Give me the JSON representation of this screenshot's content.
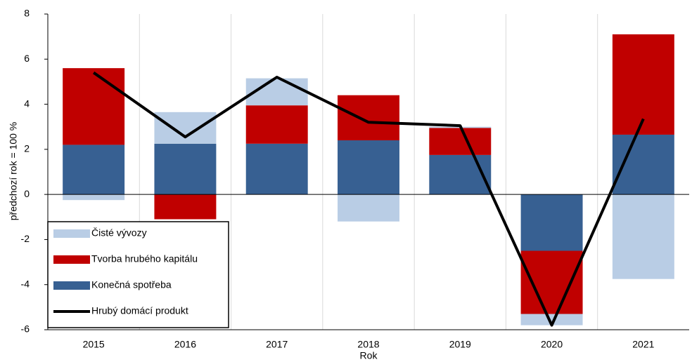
{
  "chart_data": {
    "type": "bar",
    "ylabel": "předchozí rok = 100 %",
    "xlabel": "Rok",
    "categories": [
      "2015",
      "2016",
      "2017",
      "2018",
      "2019",
      "2020",
      "2021"
    ],
    "series": [
      {
        "name": "Čisté vývozy",
        "color": "#b9cde5",
        "type": "bar",
        "values": [
          -0.25,
          1.4,
          1.2,
          -1.2,
          0.05,
          -0.5,
          -3.75
        ]
      },
      {
        "name": "Tvorba hrubého kapitálu",
        "color": "#c00000",
        "type": "bar",
        "values": [
          3.4,
          -1.1,
          1.7,
          2.0,
          1.2,
          -2.8,
          4.45
        ]
      },
      {
        "name": "Konečná spotřeba",
        "color": "#376092",
        "type": "bar",
        "values": [
          2.2,
          2.25,
          2.25,
          2.4,
          1.75,
          -2.5,
          2.65
        ]
      },
      {
        "name": "Hrubý domácí produkt",
        "color": "#000000",
        "type": "line",
        "values": [
          5.4,
          2.55,
          5.2,
          3.2,
          3.05,
          -5.8,
          3.35
        ]
      }
    ],
    "ylim": [
      -6,
      8
    ],
    "yticks": [
      -6,
      -4,
      -2,
      0,
      2,
      4,
      6,
      8
    ],
    "stacked": true,
    "legend_position": "lower left"
  }
}
